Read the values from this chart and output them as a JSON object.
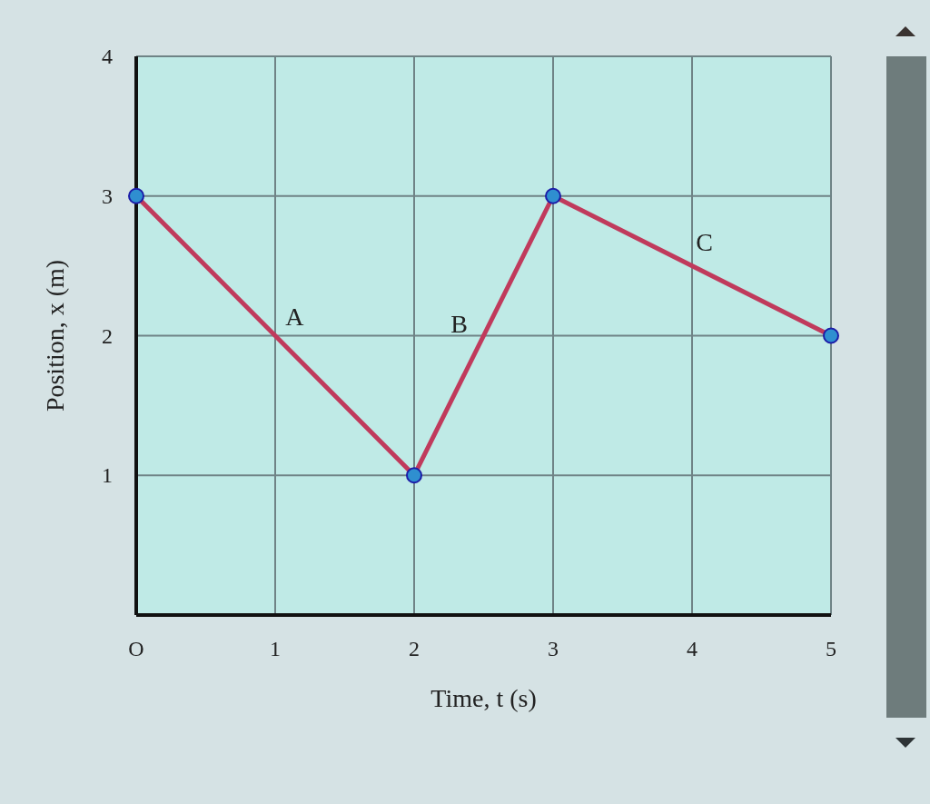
{
  "chart_data": {
    "type": "line",
    "xlabel": "Time, t (s)",
    "ylabel": "Position, x (m)",
    "x": [
      0,
      2,
      3,
      5
    ],
    "series": [
      {
        "color": "#c03a5c",
        "values": [
          3,
          1,
          3,
          2
        ]
      }
    ],
    "xlim": [
      0,
      5
    ],
    "ylim": [
      0,
      4
    ],
    "xticks": [
      {
        "value": 0,
        "label": "O"
      },
      1,
      2,
      3,
      4,
      5
    ],
    "yticks": [
      1,
      2,
      3,
      4
    ],
    "grid": true,
    "marker": "circle",
    "line_style": "solid",
    "annotations": [
      "A",
      "B",
      "C"
    ]
  }
}
